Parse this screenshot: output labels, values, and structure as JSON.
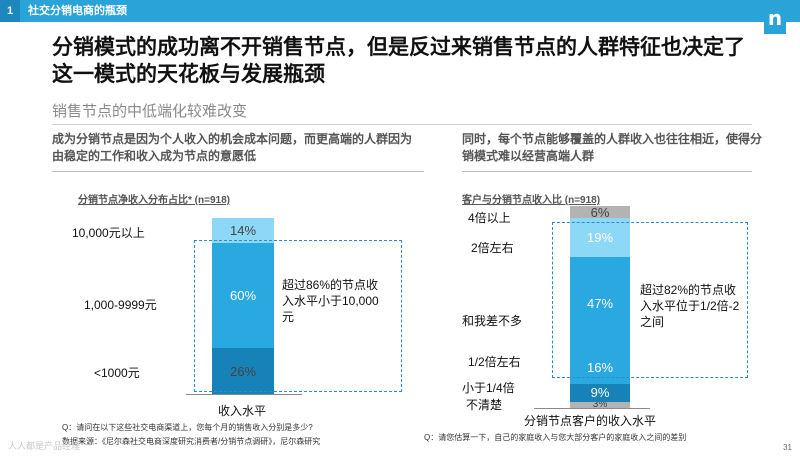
{
  "header": {
    "section_number": "1",
    "section_title": "社交分销电商的瓶颈",
    "logo_letter": "n"
  },
  "headline": "分销模式的成功离不开销售节点，但是反过来销售节点的人群特征也决定了这一模式的天花板与发展瓶颈",
  "subheadline": "销售节点的中低端化较难改变",
  "left_lead": "成为分销节点是因为个人收入的机会成本问题，而更高端的人群因为由稳定的工作和收入成为节点的意愿低",
  "right_lead": "同时，每个节点能够覆盖的人群收入也往往相近，使得分销模式难以经营高端人群",
  "colors": {
    "light_blue": "#8dd7f7",
    "mid_blue": "#2aa8e0",
    "dark_blue": "#1782b8",
    "gray": "#b3b3b3",
    "dark_gray": "#8c8c8c",
    "accent": "#2aa3d8"
  },
  "chart_data": [
    {
      "type": "bar",
      "stacked": true,
      "percent": true,
      "title": "分销节点净收入分布占比* (n=918)",
      "xlabel": "收入水平",
      "categories": [
        "<1000元",
        "1,000-9999元",
        "10,000元以上"
      ],
      "values": [
        26,
        60,
        14
      ],
      "value_labels": [
        "26%",
        "60%",
        "14%"
      ],
      "annotation": "超过86%的节点收入水平小于10,000元"
    },
    {
      "type": "bar",
      "stacked": true,
      "percent": true,
      "title": "客户与分销节点收入比 (n=918)",
      "xlabel": "分销节点客户的收入水平",
      "categories": [
        "不清楚",
        "小于1/4倍",
        "1/2倍左右",
        "和我差不多",
        "2倍左右",
        "4倍以上"
      ],
      "values": [
        3,
        9,
        16,
        47,
        19,
        6
      ],
      "value_labels": [
        "3%",
        "9%",
        "16%",
        "47%",
        "19%",
        "6%"
      ],
      "annotation": "超过82%的节点收入水平位于1/2倍-2之间"
    }
  ],
  "footnotes": {
    "left_question": "Q：请问在以下这些社交电商渠道上，您每个月的销售收入分别是多少?",
    "left_source": "数据来源：《尼尔森社交电商深度研究消费者/分销节点调研》，尼尔森研究",
    "right_question": "Q：请您估算一下，自己的家庭收入与您大部分客户的家庭收入之间的差别"
  },
  "page_number": "31",
  "watermark": "人人都是产品经理"
}
